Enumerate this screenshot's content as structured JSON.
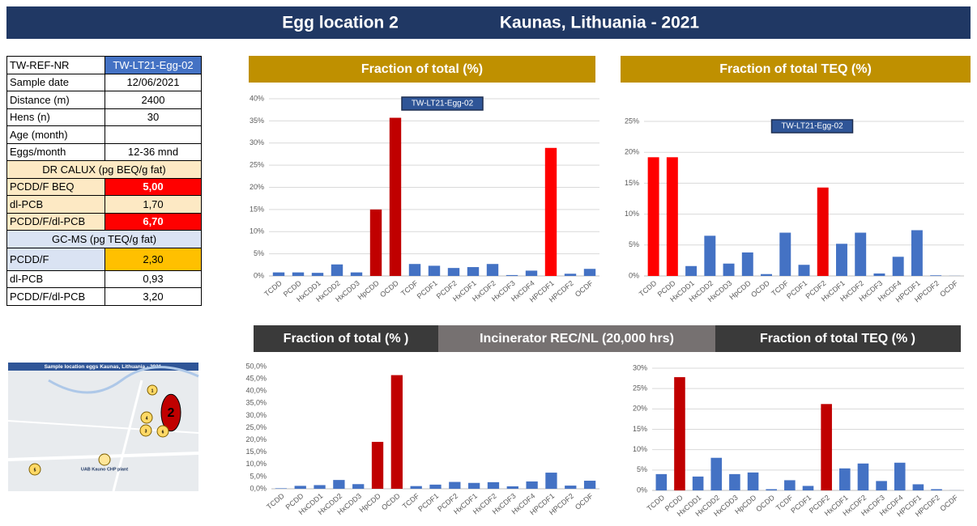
{
  "header": {
    "title": "Egg location 2",
    "location": "Kaunas, Lithuania - 2021"
  },
  "table": {
    "rows": [
      [
        "TW-REF-NR",
        "TW-LT21-Egg-02"
      ],
      [
        "Sample date",
        "12/06/2021"
      ],
      [
        "Distance (m)",
        "2400"
      ],
      [
        "Hens (n)",
        "30"
      ],
      [
        "Age (month)"
      ],
      [
        "Eggs/month",
        "12-36 mnd"
      ],
      [
        "DR CALUX  (pg BEQ/g fat)"
      ],
      [
        "PCDD/F BEQ",
        "5,00"
      ],
      [
        "dl-PCB",
        "1,70"
      ],
      [
        "PCDD/F/dl-PCB",
        "6,70"
      ],
      [
        "GC-MS  (pg TEQ/g fat)"
      ],
      [
        "PCDD/F",
        "2,30"
      ],
      [
        "dl-PCB",
        "0,93"
      ],
      [
        "PCDD/F/dl-PCB",
        "3,20"
      ]
    ]
  },
  "map": {
    "title": "Sample location eggs Kaunas, Lithuania - 2021",
    "plant": "UAB Kauno CHP plant",
    "markers": [
      "1",
      "2",
      "3",
      "4",
      "5",
      "6"
    ]
  },
  "reference_title": "Incinerator REC/NL (20,000 hrs)",
  "chart_data": [
    {
      "type": "bar",
      "title": "Fraction of total (%)",
      "categories": [
        "TCDD",
        "PCDD",
        "HxCDD1",
        "HxCDD2",
        "HxCDD3",
        "HpCDD",
        "OCDD",
        "TCDF",
        "PCDF1",
        "PCDF2",
        "HxCDF1",
        "HxCDF2",
        "HxCDF3",
        "HxCDF4",
        "HPCDF1",
        "HPCDF2",
        "OCDF"
      ],
      "series": [
        {
          "name": "TW-LT21-Egg-02",
          "colors": [
            "#4472c4",
            "#4472c4",
            "#4472c4",
            "#4472c4",
            "#4472c4",
            "#c00000",
            "#c00000",
            "#4472c4",
            "#4472c4",
            "#4472c4",
            "#4472c4",
            "#4472c4",
            "#4472c4",
            "#4472c4",
            "#ff0000",
            "#4472c4",
            "#4472c4"
          ],
          "values": [
            0.8,
            0.8,
            0.7,
            2.6,
            0.8,
            15,
            35.7,
            2.7,
            2.3,
            1.8,
            2.0,
            2.7,
            0.2,
            1.2,
            28.9,
            0.5,
            1.6
          ]
        }
      ],
      "ylim": [
        0,
        40
      ],
      "yticks": [
        {
          "value": 0,
          "label": "0%"
        },
        {
          "value": 5,
          "label": "5%"
        },
        {
          "value": 10,
          "label": "10%"
        },
        {
          "value": 15,
          "label": "15%"
        },
        {
          "value": 20,
          "label": "20%"
        },
        {
          "value": 25,
          "label": "25%"
        },
        {
          "value": 30,
          "label": "30%"
        },
        {
          "value": 35,
          "label": "35%"
        },
        {
          "value": 40,
          "label": "40%"
        }
      ],
      "grid": true
    },
    {
      "type": "bar",
      "title": "Fraction of total TEQ (%)",
      "categories": [
        "TCDD",
        "PCDD",
        "HxCDD1",
        "HxCDD2",
        "HxCDD3",
        "HpCDD",
        "OCDD",
        "TCDF",
        "PCDF1",
        "PCDF2",
        "HxCDF1",
        "HxCDF2",
        "HxCDF3",
        "HxCDF4",
        "HPCDF1",
        "HPCDF2",
        "OCDF"
      ],
      "series": [
        {
          "name": "TW-LT21-Egg-02",
          "colors": [
            "#ff0000",
            "#ff0000",
            "#4472c4",
            "#4472c4",
            "#4472c4",
            "#4472c4",
            "#4472c4",
            "#4472c4",
            "#4472c4",
            "#ee0000",
            "#4472c4",
            "#4472c4",
            "#4472c4",
            "#4472c4",
            "#4472c4",
            "#4472c4",
            "#4472c4"
          ],
          "values": [
            19.2,
            19.2,
            1.6,
            6.5,
            2.0,
            3.8,
            0.3,
            7.0,
            1.8,
            14.3,
            5.2,
            7.0,
            0.4,
            3.1,
            7.4,
            0.1,
            0.02
          ]
        }
      ],
      "ylim": [
        0,
        25
      ],
      "yticks": [
        {
          "value": 0,
          "label": "0%"
        },
        {
          "value": 5,
          "label": "5%"
        },
        {
          "value": 10,
          "label": "10%"
        },
        {
          "value": 15,
          "label": "15%"
        },
        {
          "value": 20,
          "label": "20%"
        },
        {
          "value": 25,
          "label": "25%"
        }
      ],
      "grid": true
    },
    {
      "type": "bar",
      "title": "Fraction of total (% )",
      "categories": [
        "TCDD",
        "PCDD",
        "HxCDD1",
        "HxCDD2",
        "HxCDD3",
        "HpCDD",
        "OCDD",
        "TCDF",
        "PCDF1",
        "PCDF2",
        "HxCDF1",
        "HxCDF2",
        "HxCDF3",
        "HxCDF4",
        "HPCDF1",
        "HPCDF2",
        "OCDF"
      ],
      "series": [
        {
          "colors": [
            "#4472c4",
            "#4472c4",
            "#4472c4",
            "#4472c4",
            "#4472c4",
            "#c00000",
            "#c00000",
            "#4472c4",
            "#4472c4",
            "#4472c4",
            "#4472c4",
            "#4472c4",
            "#4472c4",
            "#4472c4",
            "#4472c4",
            "#4472c4",
            "#4472c4"
          ],
          "values": [
            0.2,
            1.2,
            1.5,
            3.6,
            1.9,
            19.2,
            46.5,
            1.1,
            1.7,
            2.8,
            2.4,
            2.7,
            1.0,
            3.0,
            6.6,
            1.3,
            3.3
          ]
        }
      ],
      "ylim": [
        0,
        50
      ],
      "yticks": [
        {
          "value": 0,
          "label": "0,0%"
        },
        {
          "value": 5,
          "label": "5,0%"
        },
        {
          "value": 10,
          "label": "10,0%"
        },
        {
          "value": 15,
          "label": "15,0%"
        },
        {
          "value": 20,
          "label": "20,0%"
        },
        {
          "value": 25,
          "label": "25,0%"
        },
        {
          "value": 30,
          "label": "30,0%"
        },
        {
          "value": 35,
          "label": "35,0%"
        },
        {
          "value": 40,
          "label": "40,0%"
        },
        {
          "value": 45,
          "label": "45,0%"
        },
        {
          "value": 50,
          "label": "50,0%"
        }
      ],
      "grid": false
    },
    {
      "type": "bar",
      "title": "Fraction of total TEQ (% )",
      "categories": [
        "TCDD",
        "PCDD",
        "HxCDD1",
        "HxCDD2",
        "HxCDD3",
        "HpCDD",
        "OCDD",
        "TCDF",
        "PCDF1",
        "PCDF2",
        "HxCDF1",
        "HxCDF2",
        "HxCDF3",
        "HxCDF4",
        "HPCDF1",
        "HPCDF2",
        "OCDF"
      ],
      "series": [
        {
          "colors": [
            "#4472c4",
            "#c00000",
            "#4472c4",
            "#4472c4",
            "#4472c4",
            "#4472c4",
            "#4472c4",
            "#4472c4",
            "#4472c4",
            "#c00000",
            "#4472c4",
            "#4472c4",
            "#4472c4",
            "#4472c4",
            "#4472c4",
            "#4472c4",
            "#4472c4"
          ],
          "values": [
            4.0,
            27.8,
            3.4,
            8.0,
            4.0,
            4.4,
            0.3,
            2.5,
            1.1,
            21.2,
            5.4,
            6.6,
            2.3,
            6.8,
            1.5,
            0.3,
            0.02
          ]
        }
      ],
      "ylim": [
        0,
        30
      ],
      "yticks": [
        {
          "value": 0,
          "label": "0%"
        },
        {
          "value": 5,
          "label": "5%"
        },
        {
          "value": 10,
          "label": "10%"
        },
        {
          "value": 15,
          "label": "15%"
        },
        {
          "value": 20,
          "label": "20%"
        },
        {
          "value": 25,
          "label": "25%"
        },
        {
          "value": 30,
          "label": "30%"
        }
      ],
      "grid": true
    }
  ]
}
